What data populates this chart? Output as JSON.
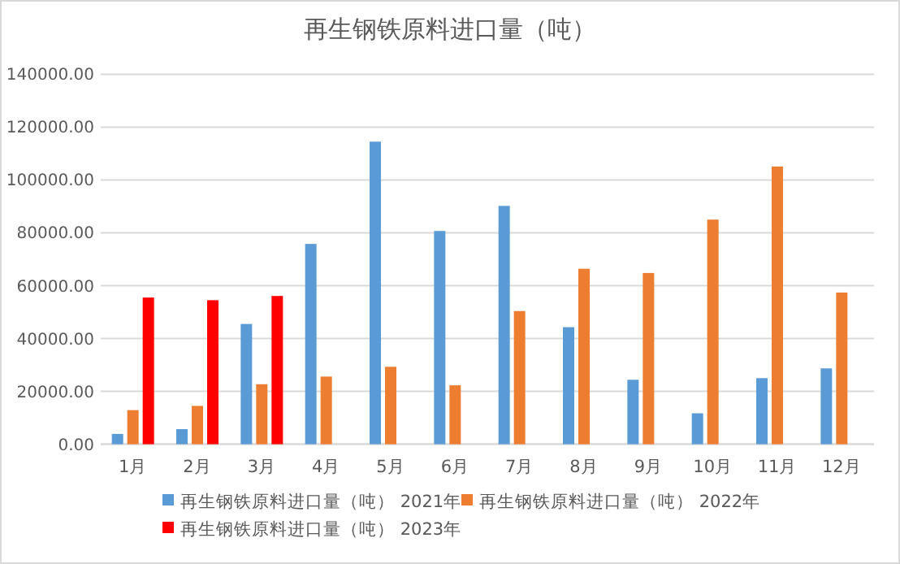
{
  "chart_data": {
    "type": "bar",
    "title": "再生钢铁原料进口量（吨）",
    "categories": [
      "1月",
      "2月",
      "3月",
      "4月",
      "5月",
      "6月",
      "7月",
      "8月",
      "9月",
      "10月",
      "11月",
      "12月"
    ],
    "series": [
      {
        "name": "再生钢铁原料进口量（吨） 2021年",
        "color": "#5b9bd5",
        "values": [
          3900,
          5700,
          45500,
          75800,
          114500,
          80700,
          90200,
          44300,
          24400,
          11700,
          25000,
          28700
        ]
      },
      {
        "name": "再生钢铁原料进口量（吨） 2022年",
        "color": "#ed7d31",
        "values": [
          12900,
          14500,
          22700,
          25600,
          29300,
          22300,
          50400,
          66400,
          64800,
          85000,
          105100,
          57400
        ]
      },
      {
        "name": "再生钢铁原料进口量（吨） 2023年",
        "color": "#ff0000",
        "values": [
          55500,
          54500,
          56100,
          null,
          null,
          null,
          null,
          null,
          null,
          null,
          null,
          null
        ]
      }
    ],
    "ylim": [
      0,
      140000
    ],
    "yticks": [
      {
        "value": 0,
        "label": "0.00"
      },
      {
        "value": 20000,
        "label": "20000.00"
      },
      {
        "value": 40000,
        "label": "40000.00"
      },
      {
        "value": 60000,
        "label": "60000.00"
      },
      {
        "value": 80000,
        "label": "80000.00"
      },
      {
        "value": 100000,
        "label": "100000.00"
      },
      {
        "value": 120000,
        "label": "120000.00"
      },
      {
        "value": 140000,
        "label": "140000.00"
      }
    ],
    "grid": "y",
    "legend": "bottom"
  }
}
